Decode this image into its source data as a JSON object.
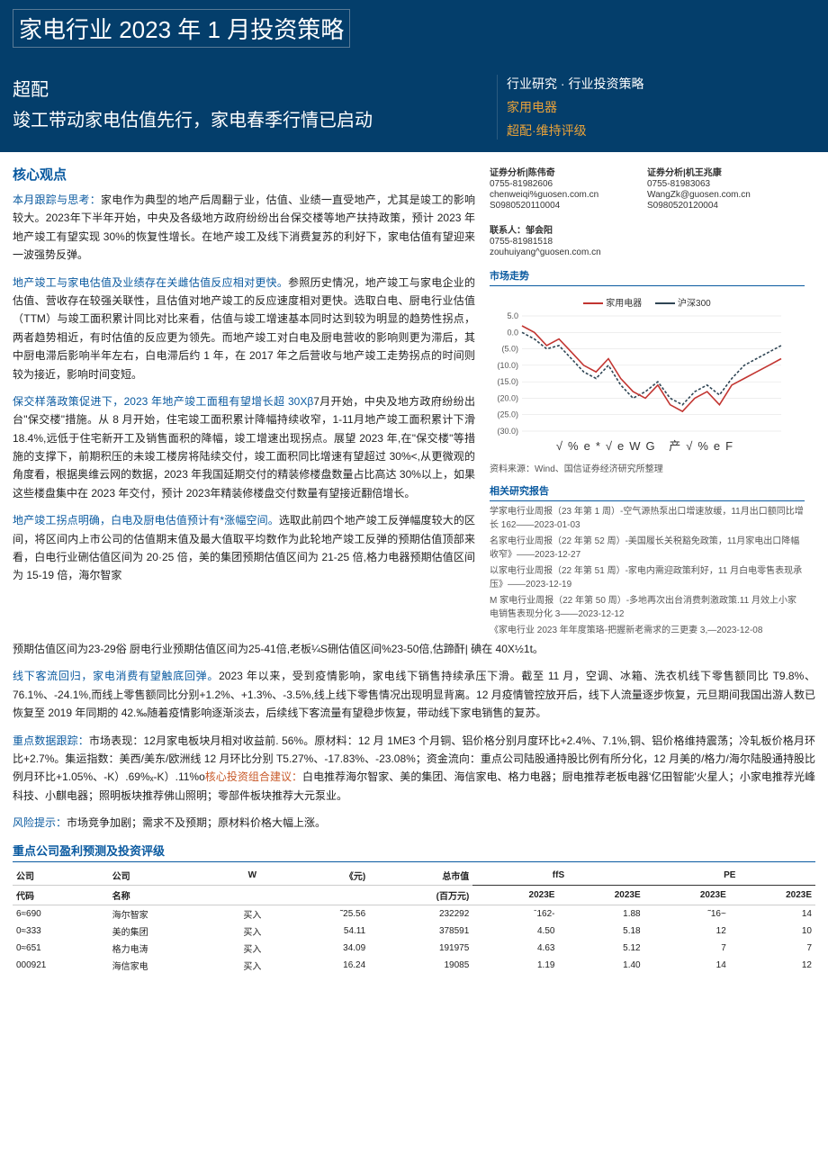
{
  "header": {
    "title": "家电行业 2023 年 1 月投资策略",
    "rating_label": "超配",
    "subtitle": "竣工带动家电估值先行，家电春季行情已启动",
    "category_line1": "行业研究 · 行业投资策略",
    "category_line2": "家用电器",
    "category_line3": "超配·维持评级"
  },
  "analysts": {
    "a1": {
      "title": "证券分析|陈伟奇",
      "phone": "0755-81982606",
      "email": "chenweiqi%guosen.com.cn",
      "cert": "S0980520110004"
    },
    "a2": {
      "title": "证券分析|机王兆康",
      "phone": "0755-81983063",
      "email": "WangZk@guosen.com.cn",
      "cert": "S0980520120004"
    }
  },
  "contact": {
    "title": "联系人：邹会阳",
    "phone": "0755-81981518",
    "email": "zouhuiyang^guosen.com.cn"
  },
  "core_title": "核心观点",
  "paragraphs": {
    "p1_lead": "本月跟踪与思考：",
    "p1_body": "家电作为典型的地产后周翻亍业，估值、业绩一直受地产，尤其是竣工的影响较大。2023年下半年开始，中央及各级地方政府纷纷出台保交楼等地产扶持政策，预计 2023 年地产竣工有望实现 30%的恢复性增长。在地产竣工及线下消费复苏的利好下，家电估值有望迎来一波强势反弹。",
    "p2_lead": "地产竣工与家电估值及业绩存在关雌估值反应相对更快。",
    "p2_body": "参照历史情况，地产竣工与家电企业的估值、营收存在较强关联性，且估值对地产竣工的反应速度相对更快。选取白电、厨电行业估值（TTM）与竣工面积累计同比对比来看，估值与竣工增速基本同时达到较为明显的趋势性拐点，两者趋势相近，有时估值的反应更为领先。而地产竣工对白电及厨电营收的影响则更为滞后，其中厨电滞后影响半年左右，白电滞后约 1 年，在 2017 年之后营收与地产竣工走势拐点的时间则较为接近，影响时间变短。",
    "p3_lead": "保交样落政策促进下，2023 年地产竣工面租有望增长超 30Xβ",
    "p3_body": "7月开始，中央及地方政府纷纷出台\"保交楼\"措施。从 8 月开始，住宅竣工面积累计降幅持续收窄，1-11月地产竣工面积累计下滑18.4%,远低于住宅新开工及销售面积的降幅，竣工增速出现拐点。展望 2023 年,在\"保交楼\"等措施的支撑下，前期积压的未竣工楼房将陆续交付，竣工面积同比增速有望超过 30%<,从更微观的角度看，根据奥维云网的数据，2023 年我国延期交付的精装修楼盘数量占比高达 30%以上，如果这些楼盘集中在 2023 年交付，预计 2023年精装修楼盘交付数量有望接近翻倍增长。",
    "p4_lead": "地产竣工拐点明确，白电及厨电估值预计有*涨幅空间。",
    "p4_body": "选取此前四个地产竣工反弹幅度较大的区间，将区间内上市公司的估值期末值及最大值取平均数作为此轮地产竣工反弹的预期估值顶部来看，白电行业硎估值区间为 20·25 倍，美的集团预期估值区间为 21-25 倍,格力电器预期估值区间为 15-19 倍，海尔智家",
    "p4b_body": "预期估值区间为23-29俗 厨电行业预期估值区间为25-41倍,老板¼S硎估值区间%23-50倍,估蹄酐| 碘在 40X½1t。",
    "p5_lead": "线下客流回归，家电消费有望触底回弹。",
    "p5_body": "2023 年以来，受到疫情影响，家电线下销售持续承压下滑。截至 11 月，空调、冰箱、洗衣机线下零售额同比 T9.8%、76.1%、-24.1%,而线上零售额同比分别+1.2%、+1.3%、-3.5%,线上线下零售情况出现明显背离。12 月疫情管控放开后，线下人流量逐步恢复，元旦期间我国出游人数已恢复至 2019 年同期的 42.‰随着疫情影响逐渐淡去，后续线下客流量有望稳步恢复，带动线下家电销售的复苏。",
    "p6_lead": "重点数据跟踪：",
    "p6_body": "市场表现：12月家电板块月相对收益前. 56%。原材料：12 月 1ME3 个月铜、铝价格分别月度环比+2.4%、7.1%,铜、铝价格维持震荡；冷轧板价格月环比+2.7%。集运指数：美西/美东/欧洲线 12 月环比分别 T5.27%、-17.83%、-23.08%；资金流向：重点公司陆股通持股比例有所分化，12 月美的/格力/海尔陆股通持股比例月环比+1.05%、-K）.69%ₓ-K）.11%o",
    "p6_lead2": "核心投资组合建议：",
    "p6_body2": "白电推荐海尔智家、美的集团、海信家电、格力电器；厨电推荐老板电器'亿田智能'火星人；小家电推荐光峰科技、小麒电器；照明板块推荐佛山照明；零部件板块推荐大元泵业。",
    "p7_lead": "风险提示：",
    "p7_body": "市场竞争加剧；需求不及预期；原材料价格大幅上涨。"
  },
  "chart": {
    "section_title": "市场走势",
    "legend1": "家用电器",
    "legend2": "沪深300",
    "legend1_color": "#c23531",
    "legend2_color": "#2f4554",
    "xaxis_text": "√%e*√eWG 产√%eF",
    "ylabels": [
      "5.0",
      "0.0",
      "(5.0)",
      "(10.0)",
      "(15.0)",
      "(20.0)",
      "(25.0)",
      "(30.0)"
    ],
    "series1": [
      2,
      0,
      -4,
      -2,
      -6,
      -10,
      -12,
      -8,
      -14,
      -18,
      -20,
      -16,
      -22,
      -24,
      -20,
      -18,
      -22,
      -16,
      -14,
      -12,
      -10,
      -8
    ],
    "series2": [
      0,
      -2,
      -5,
      -4,
      -8,
      -12,
      -14,
      -10,
      -16,
      -20,
      -18,
      -15,
      -20,
      -22,
      -18,
      -16,
      -19,
      -14,
      -10,
      -8,
      -6,
      -4
    ],
    "grid_color": "#dddddd",
    "source": "资料来源：Wind、国信证券经济研究所整理"
  },
  "related": {
    "section_title": "相关研究报告",
    "items": [
      "学家电行业周报（23 年第 1 周）-空气源热泵出口增速放缓，11月出口额同比增长 162——2023-01-03",
      "名家电行业周报（22 年第 52 周）-美国履长关税豁免政策，11月家电出口降幅收窄》——2023-12-27",
      "以家电行业周报（22 年第 51 周）-家电内需迎政策利好，11 月白电零售表现承压》——2023-12-19",
      "M 家电行业周报（22 年第 50 周）-多地再次出台消费刺激政策.11 月效上小家电销售表现分化 3——2023-12-12",
      "《家电行业 2023 年年度策珞-把握新老需求的三更妻 3,—2023-12-08"
    ]
  },
  "forecast": {
    "title": "重点公司盈利预测及投资评级",
    "cols": {
      "c1": "公司",
      "c2": "公司",
      "c3": "W",
      "c4": "《元)",
      "c5": "总市值",
      "c5b": "(百万元)",
      "g1": "ffS",
      "g2": "PE",
      "y1": "2023E",
      "y2": "2023E",
      "y3": "2023E",
      "y4": "2023E",
      "sub1": "代码",
      "sub2": "名称"
    },
    "rows": [
      {
        "code": "6≈690",
        "name": "海尔智家",
        "rating": "买入",
        "price": "˜25.56",
        "mcap": "232292",
        "eps1": "ˉ162-",
        "eps2": "1.88",
        "pe1": "˜16~",
        "pe2": "14"
      },
      {
        "code": "0≈333",
        "name": "美的集团",
        "rating": "买入",
        "price": "54.11",
        "mcap": "378591",
        "eps1": "4.50",
        "eps2": "5.18",
        "pe1": "12",
        "pe2": "10"
      },
      {
        "code": "0≈651",
        "name": "格力电涛",
        "rating": "买入",
        "price": "34.09",
        "mcap": "191975",
        "eps1": "4.63",
        "eps2": "5.12",
        "pe1": "7",
        "pe2": "7"
      },
      {
        "code": "000921",
        "name": "海信家电",
        "rating": "买入",
        "price": "16.24",
        "mcap": "19085",
        "eps1": "1.19",
        "eps2": "1.40",
        "pe1": "14",
        "pe2": "12"
      }
    ]
  }
}
